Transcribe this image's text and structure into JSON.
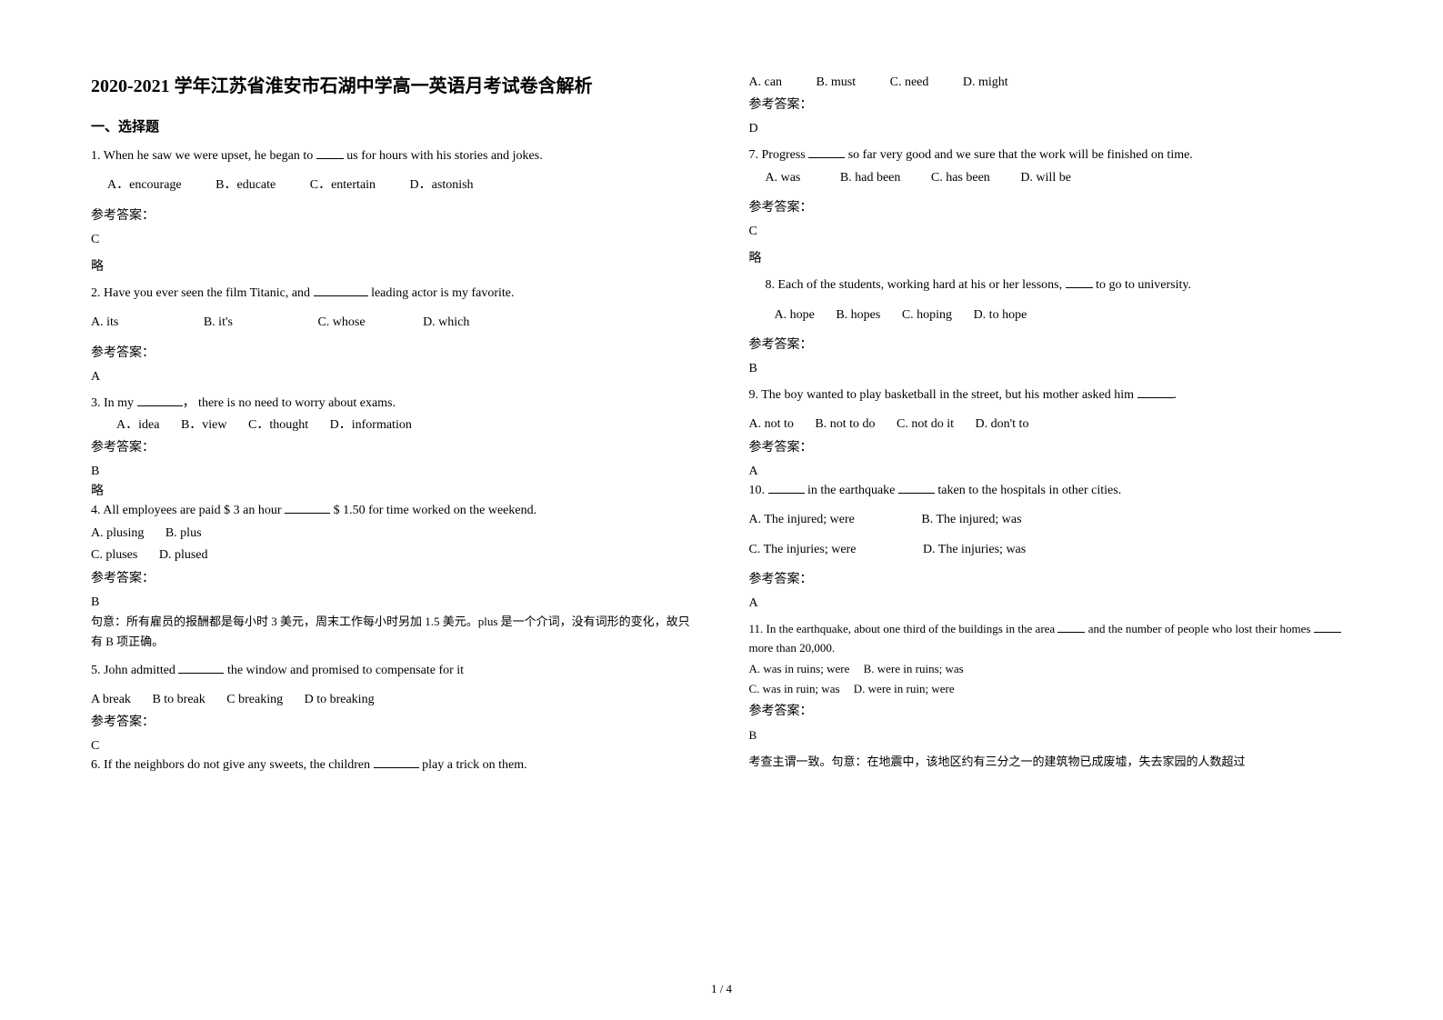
{
  "title": "2020-2021 学年江苏省淮安市石湖中学高一英语月考试卷含解析",
  "section1": "一、选择题",
  "answer_label": "参考答案：",
  "lue": "略",
  "footer": "1 / 4",
  "q1": {
    "stem_a": "1. When he saw we were upset, he began to ",
    "stem_b": " us for hours with his stories and jokes.",
    "opt_a": "A．encourage",
    "opt_b": "B．educate",
    "opt_c": "C．entertain",
    "opt_d": "D．astonish",
    "ans": "C"
  },
  "q2": {
    "stem_a": "2. Have you ever seen the film Titanic, and ",
    "stem_b": " leading actor is my favorite.",
    "opt_a": "A. its",
    "opt_b": "B. it's",
    "opt_c": "C. whose",
    "opt_d": "D. which",
    "ans": "A"
  },
  "q3": {
    "stem_a": "3. In my ",
    "stem_b": "， there is no need to worry about exams.",
    "opt_a": "A．idea",
    "opt_b": "B．view",
    "opt_c": "C．thought",
    "opt_d": "D．information",
    "ans": "B"
  },
  "q4": {
    "stem_a": "4. All employees are paid $ 3 an hour ",
    "stem_b": " $ 1.50 for time worked on the weekend.",
    "opt_a": "A. plusing",
    "opt_b": "B. plus",
    "opt_c": "C. pluses",
    "opt_d": "D. plused",
    "ans": "B",
    "note": "句意：所有雇员的报酬都是每小时 3 美元，周末工作每小时另加 1.5 美元。plus 是一个介词，没有词形的变化，故只有 B 项正确。"
  },
  "q5": {
    "stem_a": "5. John admitted ",
    "stem_b": " the window and promised to compensate for it",
    "opt_a": "A break",
    "opt_b": "B to break",
    "opt_c": "C breaking",
    "opt_d": "D to breaking",
    "ans": "C"
  },
  "q6": {
    "stem_a": "6. If the neighbors do not give any sweets, the children ",
    "stem_b": " play a trick on them.",
    "opt_a": "A. can",
    "opt_b": "B. must",
    "opt_c": "C. need",
    "opt_d": "D. might",
    "ans": "D"
  },
  "q7": {
    "stem_a": "7. Progress ",
    "stem_b": " so far very good and we sure that the work will be finished on time.",
    "opt_a": "A. was",
    "opt_b": "B. had been",
    "opt_c": "C. has been",
    "opt_d": "D. will be",
    "ans": "C"
  },
  "q8": {
    "stem_a": "8. Each of the students, working hard at his or her lessons, ",
    "stem_b": " to go to university.",
    "opt_a": "A. hope",
    "opt_b": "B. hopes",
    "opt_c": "C. hoping",
    "opt_d": "D. to hope",
    "ans": "B"
  },
  "q9": {
    "stem_a": "9. The boy wanted to play basketball in the street, but his mother asked him ",
    "stem_b": ".",
    "opt_a": "A. not to",
    "opt_b": "B. not to do",
    "opt_c": "C. not do it",
    "opt_d": "D. don't to",
    "ans": "A"
  },
  "q10": {
    "stem_a": "10. ",
    "stem_b": " in the earthquake ",
    "stem_c": " taken to the hospitals in other cities.",
    "opt_a": "A. The injured; were",
    "opt_b": "B. The injured; was",
    "opt_c": "C. The injuries; were",
    "opt_d": "D. The injuries; was",
    "ans": "A"
  },
  "q11": {
    "stem_a": "11. In the earthquake, about one third of the buildings in the area ",
    "stem_b": " and the number of people who lost their homes ",
    "stem_c": " more than 20,000.",
    "opt_a": "A. was in ruins; were",
    "opt_b": "B. were in ruins; was",
    "opt_c": "C. was in ruin; was",
    "opt_d": "D. were in ruin; were",
    "ans": "B",
    "note": "考查主谓一致。句意：在地震中，该地区约有三分之一的建筑物已成废墟，失去家园的人数超过"
  }
}
